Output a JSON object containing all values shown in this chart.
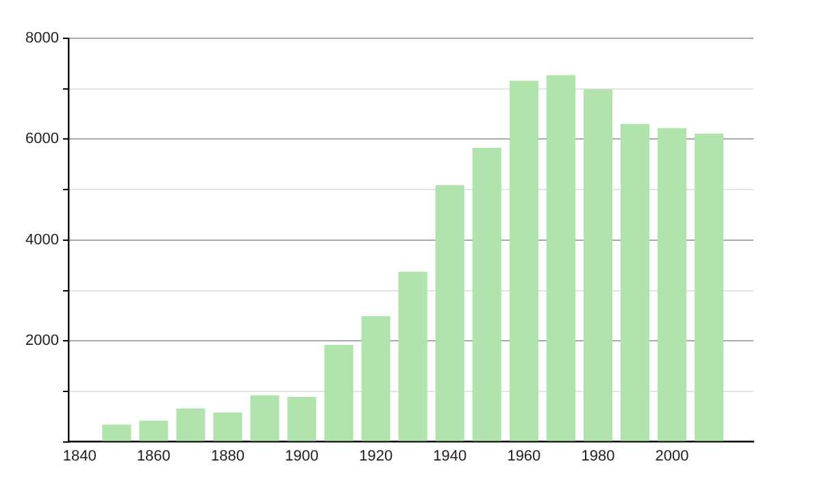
{
  "chart_data": {
    "type": "bar",
    "x": [
      1850,
      1860,
      1870,
      1880,
      1890,
      1900,
      1910,
      1920,
      1930,
      1940,
      1950,
      1960,
      1970,
      1980,
      1990,
      2000,
      2010
    ],
    "values": [
      340,
      420,
      660,
      580,
      920,
      890,
      1920,
      2490,
      3370,
      5090,
      5830,
      7160,
      7270,
      6990,
      6300,
      6220,
      6110
    ],
    "color": "#b1e3ad",
    "xlim": [
      1837,
      2022
    ],
    "xticks": [
      1840,
      1860,
      1880,
      1900,
      1920,
      1940,
      1960,
      1980,
      2000
    ],
    "ylim": [
      0,
      8000
    ],
    "yticks": [
      {
        "value": 0,
        "label": null
      },
      {
        "value": 1000,
        "label": null
      },
      2000,
      {
        "value": 3000,
        "label": null
      },
      4000,
      {
        "value": 5000,
        "label": null
      },
      6000,
      {
        "value": 7000,
        "label": null
      },
      8000
    ],
    "grid": "y"
  }
}
